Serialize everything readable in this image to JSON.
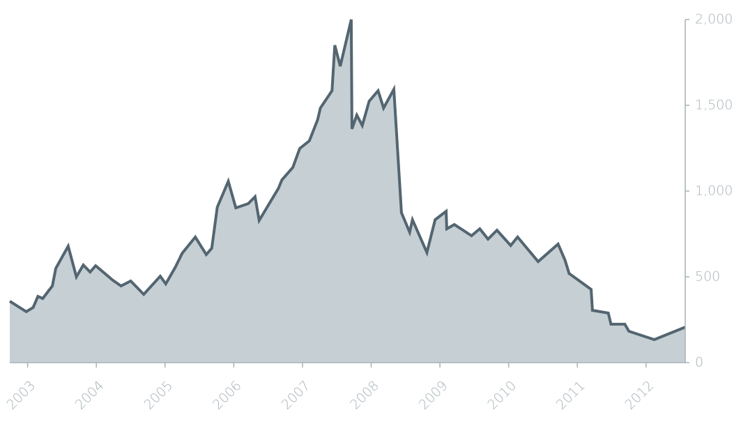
{
  "chart_data": {
    "type": "area",
    "x": [
      2002.74,
      2002.98,
      2003.08,
      2003.15,
      2003.22,
      2003.36,
      2003.41,
      2003.59,
      2003.71,
      2003.81,
      2003.91,
      2003.99,
      2004.24,
      2004.36,
      2004.5,
      2004.69,
      2004.93,
      2005.01,
      2005.15,
      2005.25,
      2005.44,
      2005.6,
      2005.68,
      2005.76,
      2005.92,
      2006.03,
      2006.21,
      2006.31,
      2006.37,
      2006.65,
      2006.7,
      2006.86,
      2006.96,
      2007.1,
      2007.22,
      2007.26,
      2007.43,
      2007.47,
      2007.55,
      2007.71,
      2007.72,
      2007.79,
      2007.87,
      2007.97,
      2008.1,
      2008.18,
      2008.33,
      2008.44,
      2008.56,
      2008.6,
      2008.81,
      2008.93,
      2009.09,
      2009.1,
      2009.21,
      2009.46,
      2009.58,
      2009.7,
      2009.83,
      2010.03,
      2010.13,
      2010.43,
      2010.72,
      2010.82,
      2010.88,
      2011.2,
      2011.22,
      2011.45,
      2011.49,
      2011.69,
      2011.75,
      2012.12,
      2012.57
    ],
    "values": [
      358,
      297,
      321,
      386,
      374,
      447,
      549,
      679,
      500,
      569,
      528,
      565,
      480,
      447,
      476,
      398,
      504,
      459,
      557,
      638,
      732,
      630,
      667,
      906,
      1057,
      902,
      927,
      967,
      829,
      1016,
      1065,
      1138,
      1248,
      1293,
      1415,
      1484,
      1585,
      1850,
      1728,
      2000,
      1362,
      1443,
      1382,
      1524,
      1585,
      1484,
      1593,
      874,
      760,
      833,
      642,
      833,
      882,
      780,
      805,
      740,
      780,
      720,
      772,
      683,
      732,
      589,
      691,
      598,
      520,
      427,
      305,
      289,
      224,
      224,
      183,
      134,
      207
    ],
    "fill": "#c6d0d4",
    "color": "#536570",
    "xlim": [
      2002.74,
      2012.57
    ],
    "xticks": [
      2003,
      2004,
      2005,
      2006,
      2007,
      2008,
      2009,
      2010,
      2011,
      2012
    ],
    "ylim": [
      0,
      2000
    ],
    "yticks": [
      0,
      500,
      {
        "value": 1000,
        "label": "1,000"
      },
      {
        "value": 1500,
        "label": "1,500"
      },
      {
        "value": 2000,
        "label": "2,000"
      }
    ],
    "y_axis_side": "right"
  }
}
